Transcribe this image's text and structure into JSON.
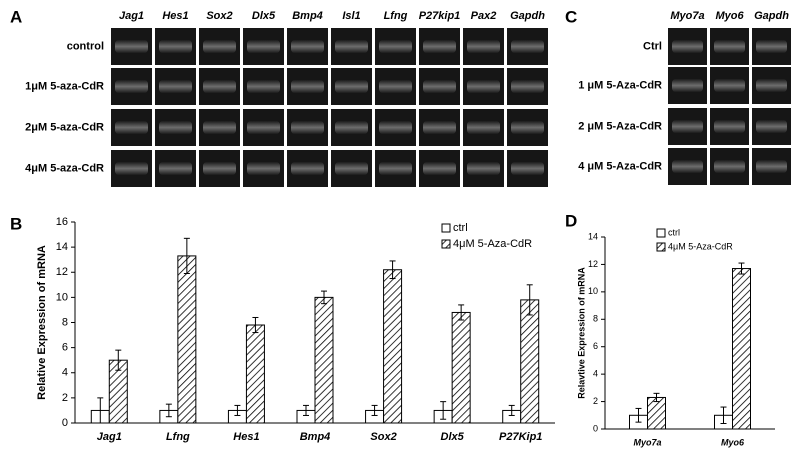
{
  "panels": {
    "A": {
      "label": "A",
      "columns": [
        "Jag1",
        "Hes1",
        "Sox2",
        "Dlx5",
        "Bmp4",
        "Isl1",
        "Lfng",
        "P27kip1",
        "Pax2",
        "Gapdh"
      ],
      "rows": [
        "control",
        "1μM 5-aza-CdR",
        "2μM 5-aza-CdR",
        "4μM 5-aza-CdR"
      ]
    },
    "C": {
      "label": "C",
      "columns": [
        "Myo7a",
        "Myo6",
        "Gapdh"
      ],
      "rows": [
        "Ctrl",
        "1 μM 5-Aza-CdR",
        "2 μM 5-Aza-CdR",
        "4 μM 5-Aza-CdR"
      ]
    }
  },
  "chart_data": [
    {
      "type": "bar",
      "label": "B",
      "ylabel": "Relative Expression of mRNA",
      "categories": [
        "Jag1",
        "Lfng",
        "Hes1",
        "Bmp4",
        "Sox2",
        "Dlx5",
        "P27Kip1"
      ],
      "series": [
        {
          "name": "ctrl",
          "color": "#ffffff",
          "values": [
            1,
            1,
            1,
            1,
            1,
            1,
            1
          ],
          "errors": [
            1.0,
            0.5,
            0.4,
            0.4,
            0.4,
            0.7,
            0.4
          ]
        },
        {
          "name": "4μM 5-Aza-CdR",
          "color": "hatch",
          "values": [
            5.0,
            13.3,
            7.8,
            10.0,
            12.2,
            8.8,
            9.8
          ],
          "errors": [
            0.8,
            1.4,
            0.6,
            0.5,
            0.7,
            0.6,
            1.2
          ]
        }
      ],
      "ylim": [
        0,
        16
      ],
      "yticks": [
        0,
        2,
        4,
        6,
        8,
        10,
        12,
        14,
        16
      ],
      "legend": "top-right"
    },
    {
      "type": "bar",
      "label": "D",
      "ylabel": "Relavtive Expression of mRNA",
      "categories": [
        "Myo7a",
        "Myo6"
      ],
      "series": [
        {
          "name": "ctrl",
          "color": "#ffffff",
          "values": [
            1,
            1
          ],
          "errors": [
            0.5,
            0.6
          ]
        },
        {
          "name": "4μM 5-Aza-CdR",
          "color": "hatch",
          "values": [
            2.3,
            11.7
          ],
          "errors": [
            0.3,
            0.4
          ]
        }
      ],
      "ylim": [
        0,
        14
      ],
      "yticks": [
        0,
        2,
        4,
        6,
        8,
        10,
        12,
        14
      ],
      "legend": "top-left"
    }
  ]
}
